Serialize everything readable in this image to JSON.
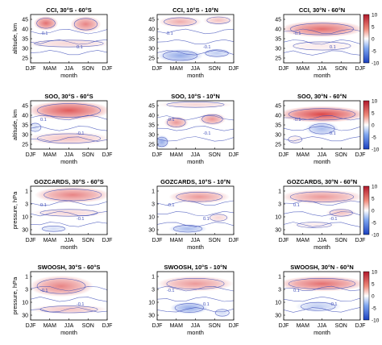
{
  "chart_data": {
    "type": "heatmap",
    "colors": {
      "positive": "#d62728",
      "negative": "#1f4fd0",
      "contour": "#3b4bb8",
      "background": "#ffffff"
    },
    "colorbar": {
      "ticks": [
        "10",
        "5",
        "0",
        "-5",
        "-10"
      ],
      "range": [
        -10,
        10
      ]
    },
    "x_tick_labels": [
      "DJF",
      "MAM",
      "JJA",
      "SON",
      "DJF"
    ],
    "xlabel": "month",
    "row_ylabels": [
      "altitude, km",
      "altitude, km",
      "pressure, hPa",
      "pressure, hPa"
    ],
    "altitude_ticks": [
      "45",
      "40",
      "35",
      "30",
      "25"
    ],
    "pressure_ticks": [
      "1",
      "3",
      "10",
      "30"
    ],
    "contour_labels": [
      "-0.1",
      "0.1",
      "-0.1",
      "0.1",
      "-0.1"
    ],
    "panels": [
      {
        "title": "CCI, 30°S - 60°S",
        "blobs": [
          {
            "x": 0.2,
            "y": 0.18,
            "rx": 0.16,
            "ry": 0.15,
            "v": 7
          },
          {
            "x": 0.72,
            "y": 0.2,
            "rx": 0.2,
            "ry": 0.17,
            "v": 6
          },
          {
            "x": 0.5,
            "y": 0.6,
            "rx": 0.6,
            "ry": 0.1,
            "v": 2
          }
        ]
      },
      {
        "title": "CCI, 10°S - 10°N",
        "blobs": [
          {
            "x": 0.3,
            "y": 0.15,
            "rx": 0.28,
            "ry": 0.12,
            "v": 4
          },
          {
            "x": 0.8,
            "y": 0.12,
            "rx": 0.2,
            "ry": 0.1,
            "v": 3
          },
          {
            "x": 0.3,
            "y": 0.85,
            "rx": 0.3,
            "ry": 0.14,
            "v": -5
          },
          {
            "x": 0.78,
            "y": 0.8,
            "rx": 0.2,
            "ry": 0.1,
            "v": -3
          }
        ]
      },
      {
        "title": "CCI, 30°N - 60°N",
        "blobs": [
          {
            "x": 0.5,
            "y": 0.3,
            "rx": 0.55,
            "ry": 0.17,
            "v": 7
          },
          {
            "x": 0.5,
            "y": 0.65,
            "rx": 0.5,
            "ry": 0.12,
            "v": 1
          }
        ]
      },
      {
        "title": "SOO, 30°S - 60°S",
        "blobs": [
          {
            "x": 0.5,
            "y": 0.2,
            "rx": 0.55,
            "ry": 0.2,
            "v": 8
          },
          {
            "x": 0.06,
            "y": 0.55,
            "rx": 0.1,
            "ry": 0.12,
            "v": -2
          },
          {
            "x": 0.5,
            "y": 0.78,
            "rx": 0.55,
            "ry": 0.14,
            "v": 3
          }
        ]
      },
      {
        "title": "SOO, 10°S - 10°N",
        "blobs": [
          {
            "x": 0.25,
            "y": 0.45,
            "rx": 0.16,
            "ry": 0.13,
            "v": 5
          },
          {
            "x": 0.72,
            "y": 0.38,
            "rx": 0.18,
            "ry": 0.13,
            "v": 5
          },
          {
            "x": 0.5,
            "y": 0.08,
            "rx": 0.5,
            "ry": 0.08,
            "v": 2
          },
          {
            "x": 0.06,
            "y": 0.85,
            "rx": 0.1,
            "ry": 0.14,
            "v": -5
          }
        ]
      },
      {
        "title": "SOO, 30°N - 60°N",
        "blobs": [
          {
            "x": 0.5,
            "y": 0.28,
            "rx": 0.58,
            "ry": 0.17,
            "v": 9
          },
          {
            "x": 0.5,
            "y": 0.58,
            "rx": 0.22,
            "ry": 0.15,
            "v": -4
          },
          {
            "x": 0.15,
            "y": 0.8,
            "rx": 0.12,
            "ry": 0.1,
            "v": 1
          }
        ]
      },
      {
        "title": "GOZCARDS, 30°S - 60°S",
        "blobs": [
          {
            "x": 0.55,
            "y": 0.18,
            "rx": 0.5,
            "ry": 0.17,
            "v": 6
          },
          {
            "x": 0.5,
            "y": 0.55,
            "rx": 0.5,
            "ry": 0.1,
            "v": 2
          },
          {
            "x": 0.3,
            "y": 0.88,
            "rx": 0.2,
            "ry": 0.08,
            "v": -2
          }
        ]
      },
      {
        "title": "GOZCARDS, 10°S - 10°N",
        "blobs": [
          {
            "x": 0.55,
            "y": 0.22,
            "rx": 0.4,
            "ry": 0.14,
            "v": 5
          },
          {
            "x": 0.4,
            "y": 0.88,
            "rx": 0.25,
            "ry": 0.1,
            "v": -4
          },
          {
            "x": 0.8,
            "y": 0.65,
            "rx": 0.15,
            "ry": 0.1,
            "v": 2
          }
        ]
      },
      {
        "title": "GOZCARDS, 30°N - 60°N",
        "blobs": [
          {
            "x": 0.5,
            "y": 0.22,
            "rx": 0.55,
            "ry": 0.15,
            "v": 5
          },
          {
            "x": 0.75,
            "y": 0.55,
            "rx": 0.2,
            "ry": 0.1,
            "v": 3
          },
          {
            "x": 0.4,
            "y": 0.8,
            "rx": 0.3,
            "ry": 0.08,
            "v": 1
          }
        ]
      },
      {
        "title": "SWOOSH, 30°S - 60°S",
        "blobs": [
          {
            "x": 0.4,
            "y": 0.3,
            "rx": 0.42,
            "ry": 0.22,
            "v": 6
          },
          {
            "x": 0.5,
            "y": 0.78,
            "rx": 0.5,
            "ry": 0.1,
            "v": 3
          }
        ]
      },
      {
        "title": "SWOOSH, 10°S - 10°N",
        "blobs": [
          {
            "x": 0.5,
            "y": 0.25,
            "rx": 0.5,
            "ry": 0.16,
            "v": 5
          },
          {
            "x": 0.42,
            "y": 0.75,
            "rx": 0.25,
            "ry": 0.13,
            "v": -5
          },
          {
            "x": 0.85,
            "y": 0.85,
            "rx": 0.12,
            "ry": 0.1,
            "v": -2
          }
        ]
      },
      {
        "title": "SWOOSH, 30°N - 60°N",
        "blobs": [
          {
            "x": 0.5,
            "y": 0.25,
            "rx": 0.58,
            "ry": 0.16,
            "v": 7
          },
          {
            "x": 0.45,
            "y": 0.72,
            "rx": 0.3,
            "ry": 0.12,
            "v": -3
          }
        ]
      }
    ]
  }
}
